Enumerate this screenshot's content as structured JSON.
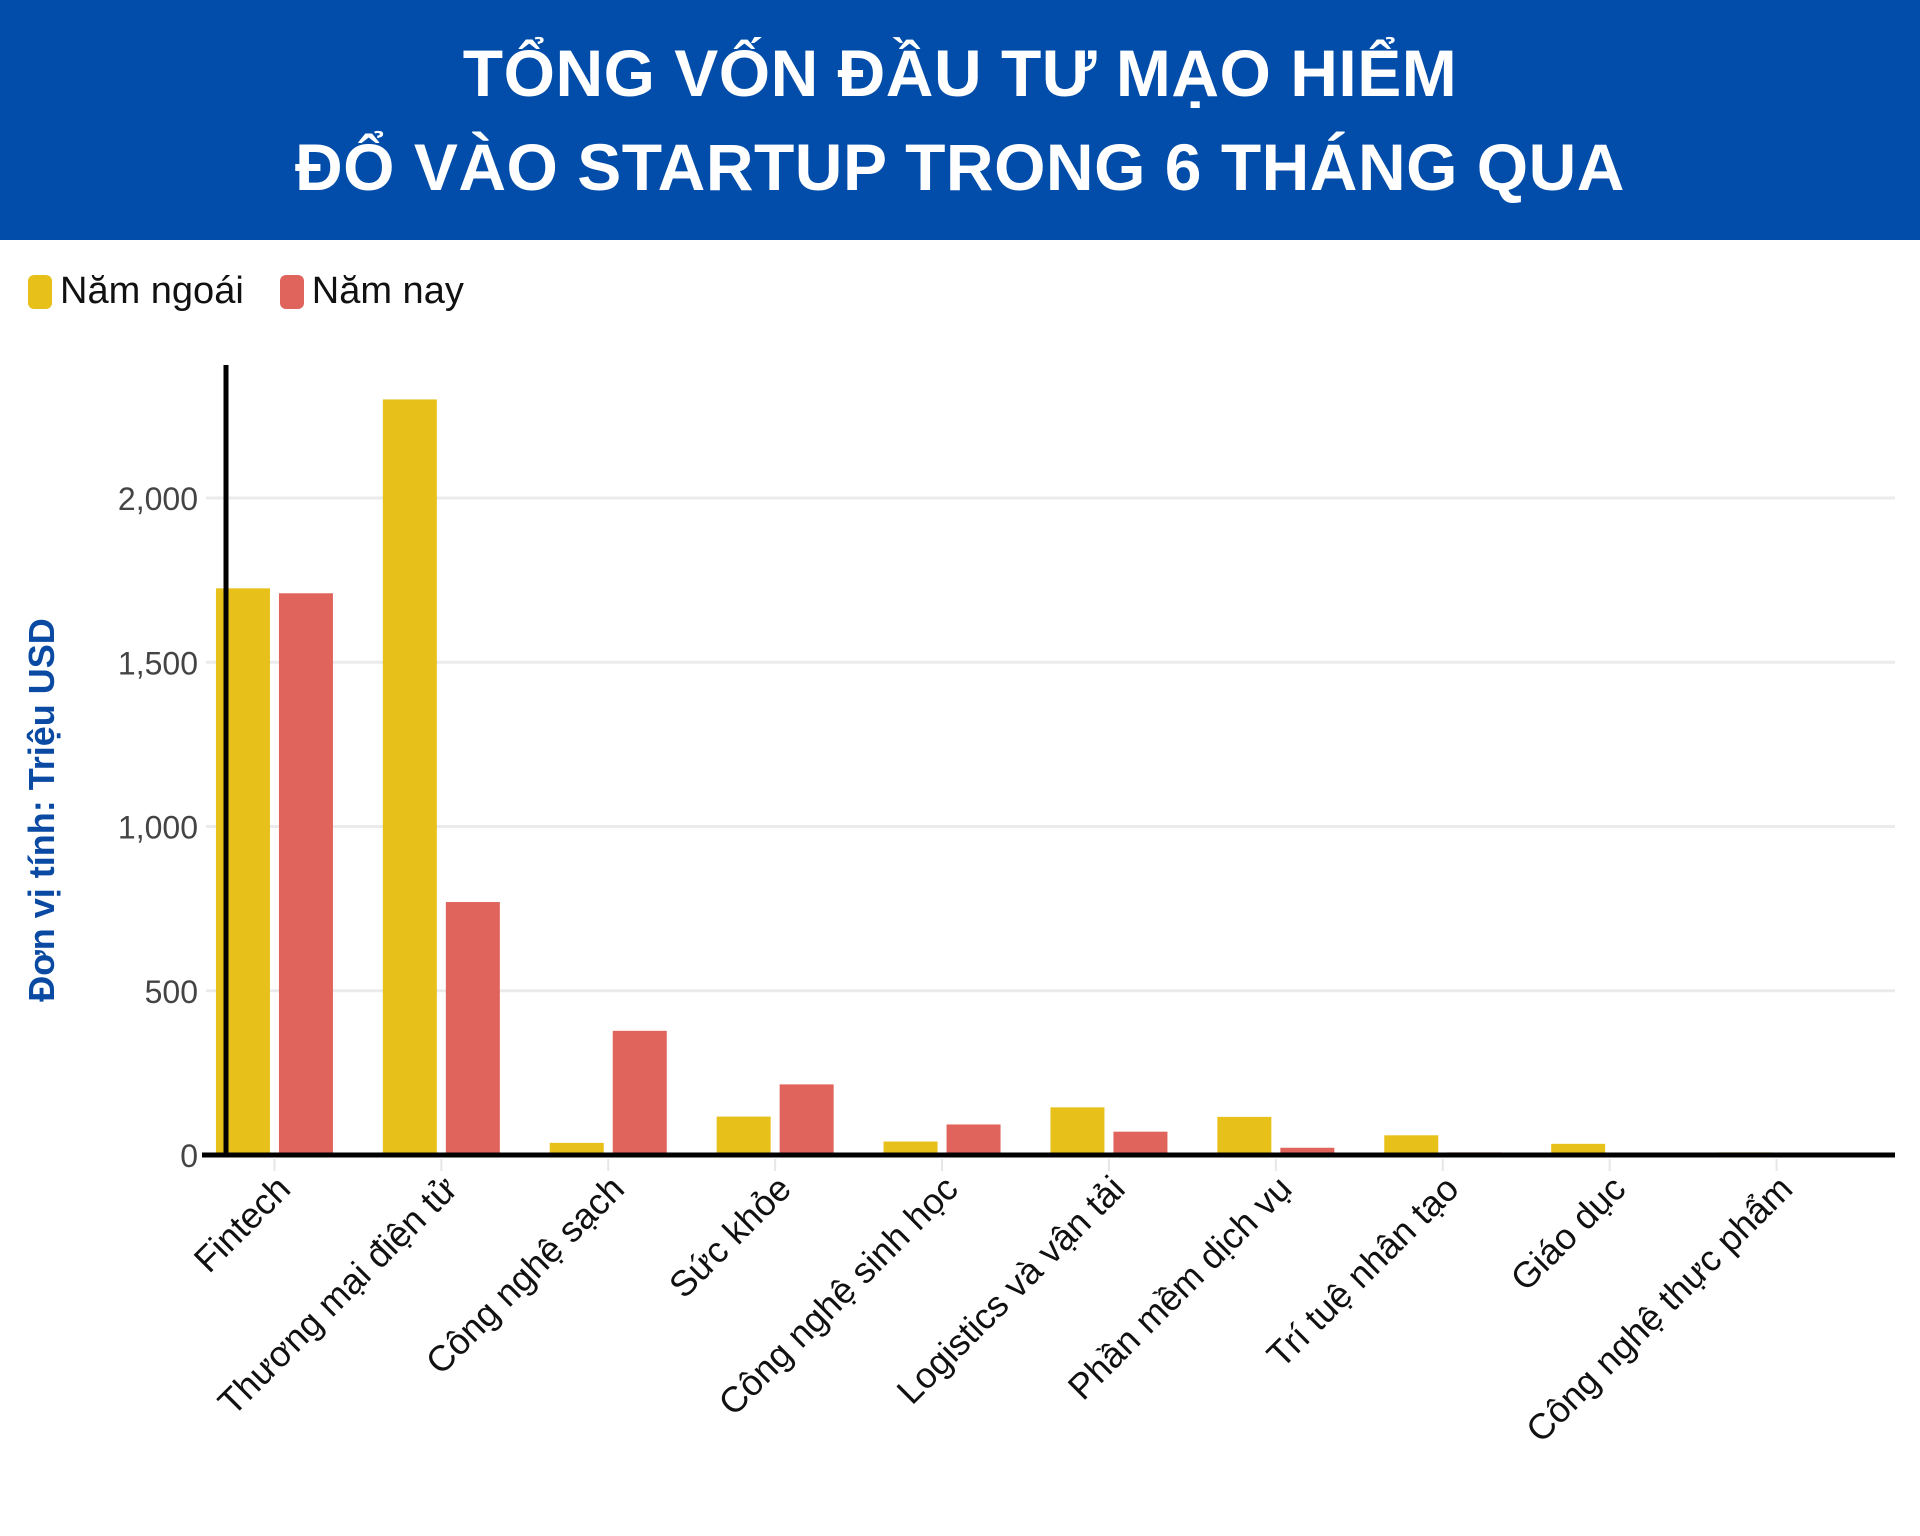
{
  "header": {
    "title_line1": "TỔNG VỐN ĐẦU TƯ MẠO HIỂM",
    "title_line2": "ĐỔ VÀO STARTUP TRONG 6 THÁNG QUA",
    "background_color": "#024da9"
  },
  "legend": [
    {
      "label": "Năm ngoái",
      "color": "#e8c01a"
    },
    {
      "label": "Năm nay",
      "color": "#e0645c"
    }
  ],
  "axis": {
    "ylabel": "Đơn vị tính: Triệu USD",
    "yticks": [
      "0",
      "500",
      "1,000",
      "1,500",
      "2,000"
    ]
  },
  "chart_data": {
    "type": "bar",
    "title": "TỔNG VỐN ĐẦU TƯ MẠO HIỂM ĐỔ VÀO STARTUP TRONG 6 THÁNG QUA",
    "xlabel": "",
    "ylabel": "Đơn vị tính: Triệu USD",
    "ylim": [
      0,
      2400
    ],
    "yticks": [
      0,
      500,
      1000,
      1500,
      2000
    ],
    "grid": true,
    "legend_position": "top-left",
    "categories": [
      "Fintech",
      "Thương mại điện tử",
      "Công nghệ sạch",
      "Sức khỏe",
      "Công nghệ sinh học",
      "Logistics và vận tải",
      "Phần mềm dịch vụ",
      "Trí tuệ nhân tạo",
      "Giáo dục",
      "Công nghệ thực phẩm"
    ],
    "series": [
      {
        "name": "Năm ngoái",
        "color": "#e8c01a",
        "values": [
          1725,
          2300,
          37,
          117,
          41,
          145,
          116,
          60,
          34,
          8
        ]
      },
      {
        "name": "Năm nay",
        "color": "#e0645c",
        "values": [
          1710,
          770,
          378,
          215,
          93,
          71,
          22,
          8,
          4,
          0
        ]
      }
    ]
  }
}
